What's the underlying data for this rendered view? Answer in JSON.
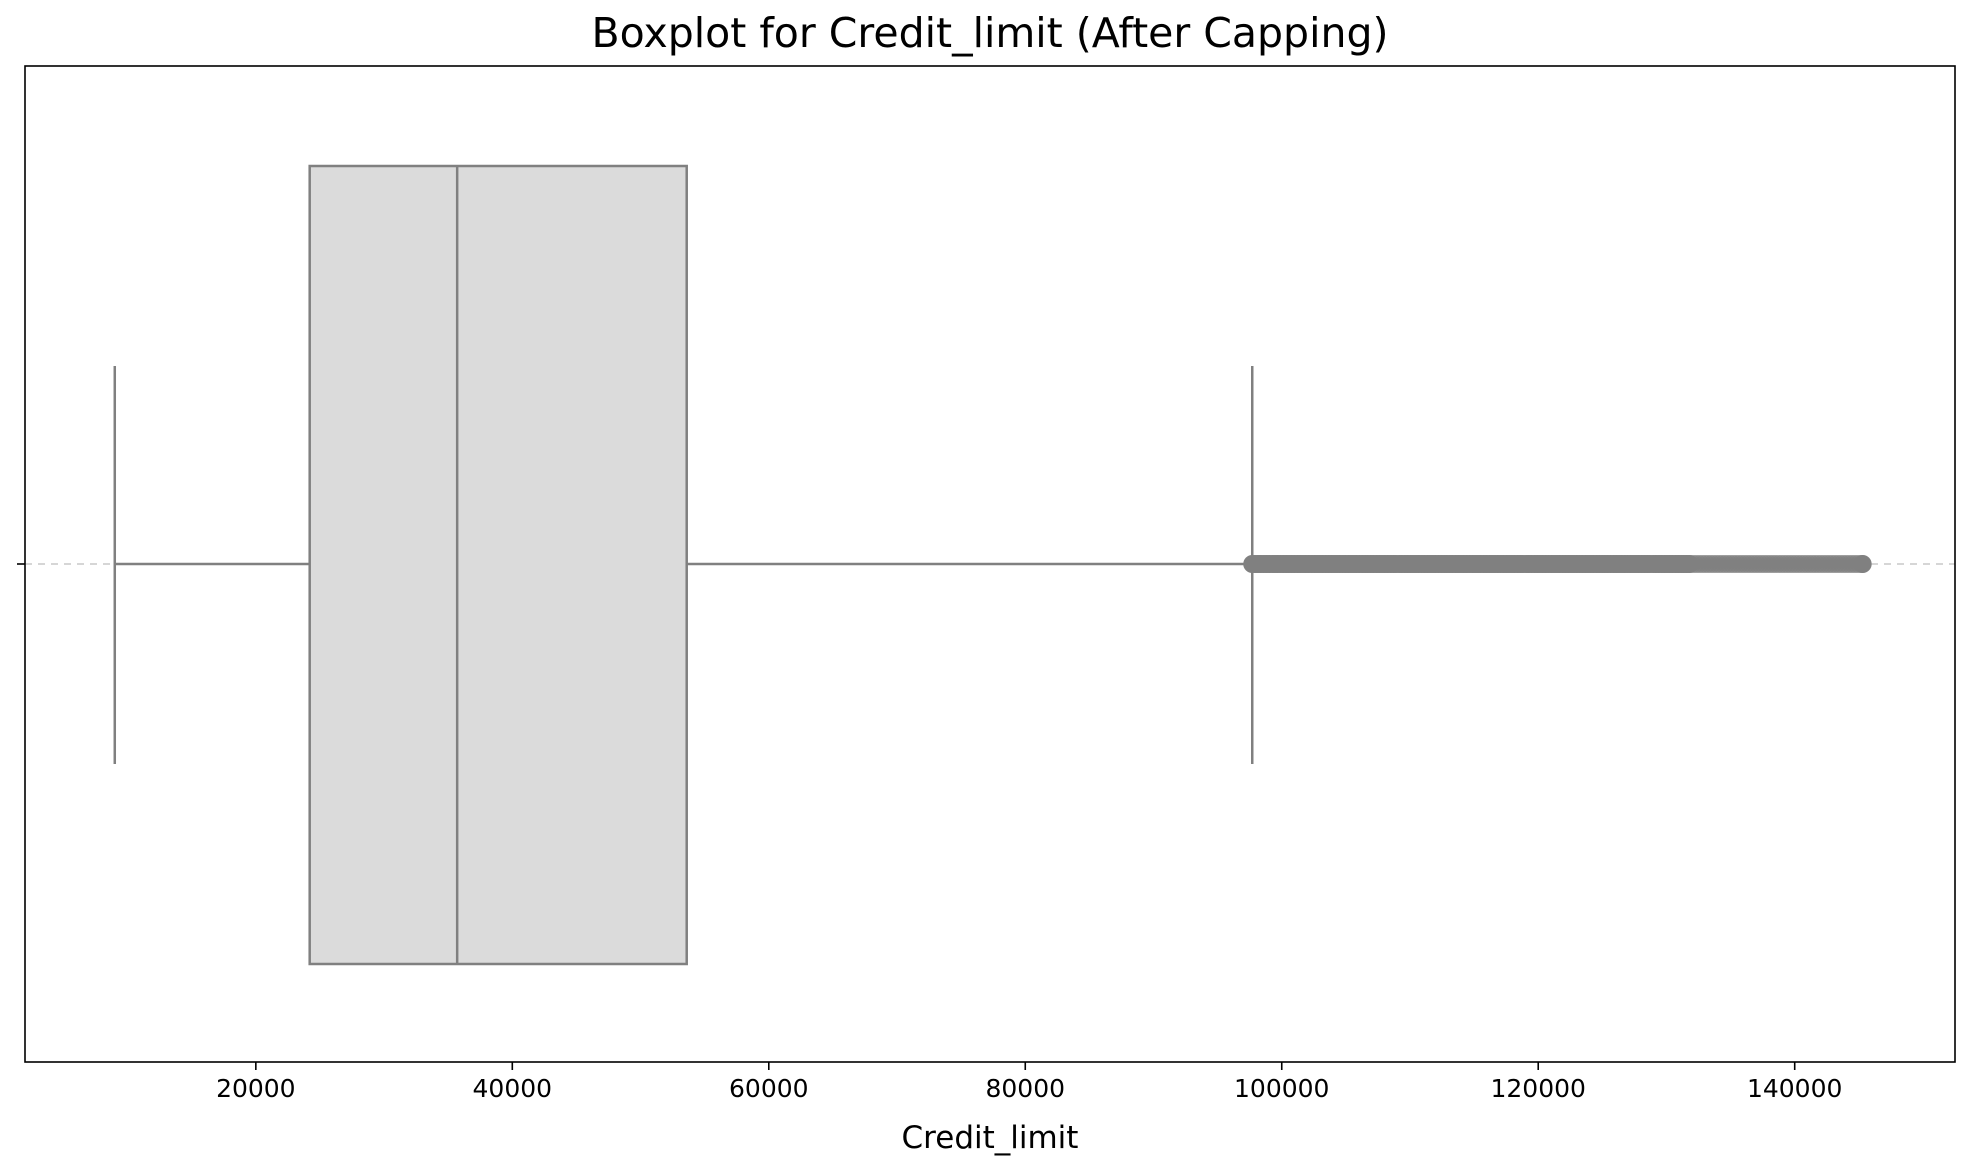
{
  "chart_data": {
    "type": "box",
    "orientation": "horizontal",
    "title": "Boxplot for Credit_limit (After Capping)",
    "xlabel": "Credit_limit",
    "ylabel": "",
    "xlim": [
      2000,
      152500
    ],
    "x_ticks": [
      20000,
      40000,
      60000,
      80000,
      100000,
      120000,
      140000
    ],
    "x_tick_labels": [
      "20000",
      "40000",
      "60000",
      "80000",
      "100000",
      "120000",
      "140000"
    ],
    "grid": false,
    "legend": "none",
    "box": {
      "whisker_low": 9000,
      "q1": 24200,
      "median": 35700,
      "q3": 53600,
      "whisker_high": 97700
    },
    "outliers_range": [
      97700,
      145300
    ],
    "colors": {
      "box_fill": "#dbdbdb",
      "box_edge": "#808080",
      "outlier": "#808080",
      "guide_line": "#c8c8c8",
      "frame": "#000000"
    }
  }
}
